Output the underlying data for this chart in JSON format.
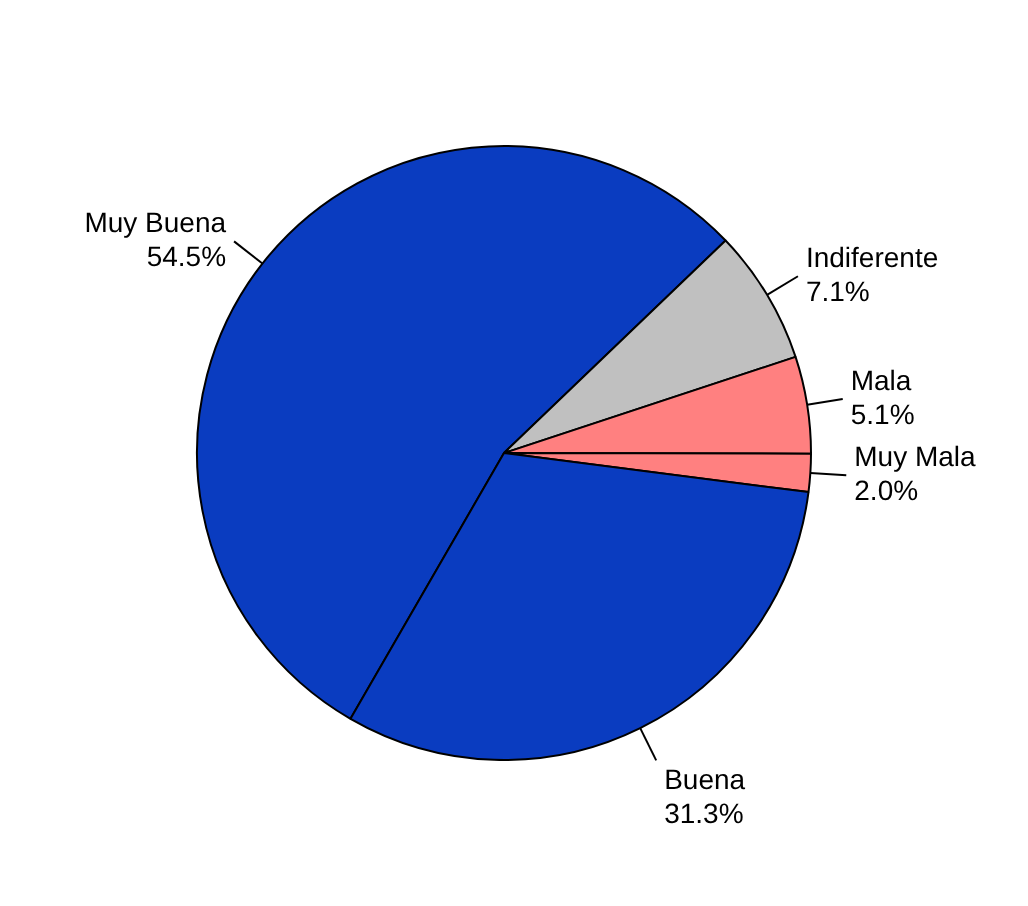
{
  "chart_data": {
    "type": "pie",
    "categories": [
      "Muy Buena",
      "Indiferente",
      "Mala",
      "Muy Mala",
      "Buena"
    ],
    "values": [
      54.5,
      7.1,
      5.1,
      2.0,
      31.3
    ],
    "colors": [
      "#0a3cc0",
      "#c0c0c0",
      "#ff8080",
      "#ff8080",
      "#0a3cc0"
    ],
    "value_labels": [
      "54.5%",
      "7.1%",
      "5.1%",
      "2.0%",
      "31.3%"
    ],
    "legend": false
  }
}
